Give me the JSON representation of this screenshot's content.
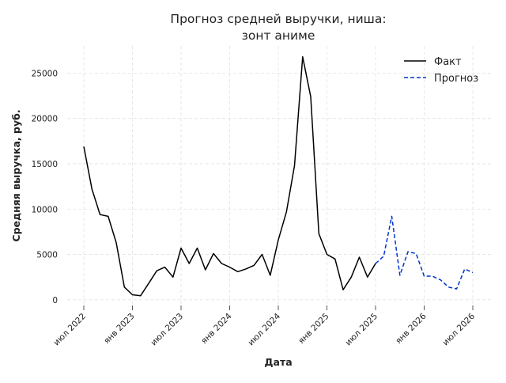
{
  "chart_data": {
    "type": "line",
    "title_lines": [
      "Прогноз средней выручки, ниша:",
      "зонт аниме"
    ],
    "xlabel": "Дата",
    "ylabel": "Средняя выручка, руб.",
    "x_tick_labels": [
      "июл 2022",
      "янв 2023",
      "июл 2023",
      "янв 2024",
      "июл 2024",
      "янв 2025",
      "июл 2025",
      "янв 2026",
      "июл 2026"
    ],
    "x_ticks": [
      "2022-07",
      "2023-01",
      "2023-07",
      "2024-01",
      "2024-07",
      "2025-01",
      "2025-07",
      "2026-01",
      "2026-07"
    ],
    "y_ticks": [
      0,
      5000,
      10000,
      15000,
      20000,
      25000
    ],
    "y_tick_labels": [
      "0",
      "5000",
      "10000",
      "15000",
      "20000",
      "25000"
    ],
    "xlim": [
      "2022-07",
      "2026-07"
    ],
    "ylim": [
      -800,
      28000
    ],
    "grid": true,
    "legend_position": "top-right",
    "series": [
      {
        "name": "Факт",
        "color": "#000000",
        "style": "solid",
        "x": [
          "2022-07",
          "2022-08",
          "2022-09",
          "2022-10",
          "2022-11",
          "2022-12",
          "2023-01",
          "2023-02",
          "2023-03",
          "2023-04",
          "2023-05",
          "2023-06",
          "2023-07",
          "2023-08",
          "2023-09",
          "2023-10",
          "2023-11",
          "2023-12",
          "2024-01",
          "2024-02",
          "2024-03",
          "2024-04",
          "2024-05",
          "2024-06",
          "2024-07",
          "2024-08",
          "2024-09",
          "2024-10",
          "2024-11",
          "2024-12",
          "2025-01",
          "2025-02",
          "2025-03",
          "2025-04",
          "2025-05",
          "2025-06",
          "2025-07"
        ],
        "values": [
          16900,
          12200,
          9400,
          9200,
          6300,
          1400,
          550,
          450,
          1800,
          3200,
          3600,
          2500,
          5700,
          4000,
          5700,
          3300,
          5100,
          4000,
          3600,
          3100,
          3400,
          3800,
          5000,
          2700,
          6600,
          9700,
          14800,
          26800,
          22400,
          7300,
          5000,
          4500,
          1100,
          2500,
          4700,
          2500,
          4000
        ]
      },
      {
        "name": "Прогноз",
        "color": "#0033cc",
        "style": "dashed",
        "x": [
          "2025-07",
          "2025-08",
          "2025-09",
          "2025-10",
          "2025-11",
          "2025-12",
          "2026-01",
          "2026-02",
          "2026-03",
          "2026-04",
          "2026-05",
          "2026-06",
          "2026-07"
        ],
        "values": [
          4000,
          4800,
          9200,
          2700,
          5300,
          5100,
          2600,
          2600,
          2200,
          1400,
          1200,
          3400,
          3000
        ]
      }
    ]
  }
}
